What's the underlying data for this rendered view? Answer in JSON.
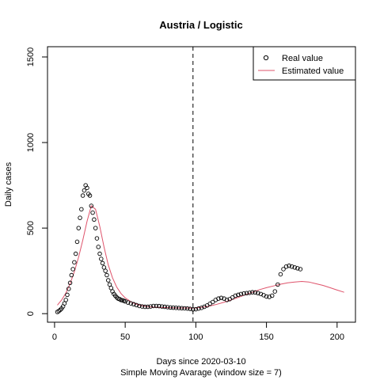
{
  "chart_data": {
    "type": "scatter",
    "title": "Austria / Logistic",
    "xlabel": "Days since 2020-03-10",
    "xlabel2": "Simple Moving Avarage (window size = 7)",
    "ylabel": "Daily cases",
    "xlim": [
      -5,
      213
    ],
    "ylim": [
      -50,
      1560
    ],
    "xticks": [
      0,
      50,
      100,
      150,
      200
    ],
    "yticks": [
      0,
      500,
      1000,
      1500
    ],
    "xtick_labels": [
      "0",
      "50",
      "100",
      "150",
      "200"
    ],
    "ytick_labels": [
      "0",
      "500",
      "1000",
      "1500"
    ],
    "vline_x": 98,
    "grid": false,
    "legend_position": "top-right",
    "series": [
      {
        "name": "Real value",
        "kind": "points",
        "color": "#000000",
        "x": [
          2,
          3,
          4,
          5,
          6,
          7,
          8,
          9,
          10,
          11,
          12,
          13,
          14,
          15,
          16,
          17,
          18,
          19,
          20,
          21,
          22,
          23,
          24,
          25,
          26,
          27,
          28,
          29,
          30,
          31,
          32,
          33,
          34,
          35,
          36,
          37,
          38,
          39,
          40,
          41,
          42,
          43,
          44,
          45,
          46,
          47,
          48,
          49,
          50,
          52,
          54,
          56,
          58,
          60,
          62,
          64,
          66,
          68,
          70,
          72,
          74,
          76,
          78,
          80,
          82,
          84,
          86,
          88,
          90,
          92,
          94,
          96,
          98,
          100,
          102,
          104,
          106,
          108,
          110,
          112,
          114,
          116,
          118,
          120,
          122,
          124,
          126,
          128,
          130,
          132,
          134,
          136,
          138,
          140,
          142,
          144,
          146,
          148,
          150,
          152,
          154,
          156,
          158,
          160,
          162,
          164,
          166,
          168,
          170,
          172,
          174
        ],
        "y": [
          10,
          15,
          22,
          30,
          42,
          60,
          80,
          110,
          145,
          180,
          225,
          260,
          300,
          350,
          420,
          500,
          560,
          610,
          690,
          720,
          750,
          735,
          700,
          690,
          630,
          590,
          550,
          500,
          440,
          390,
          350,
          320,
          295,
          270,
          250,
          225,
          195,
          170,
          150,
          130,
          115,
          105,
          95,
          88,
          85,
          80,
          78,
          75,
          72,
          65,
          60,
          55,
          50,
          45,
          42,
          40,
          40,
          42,
          45,
          45,
          44,
          42,
          40,
          38,
          36,
          35,
          34,
          33,
          32,
          31,
          30,
          28,
          25,
          26,
          30,
          34,
          40,
          48,
          58,
          68,
          80,
          88,
          92,
          88,
          80,
          85,
          95,
          105,
          110,
          115,
          118,
          120,
          122,
          125,
          124,
          120,
          115,
          108,
          100,
          98,
          105,
          130,
          170,
          230,
          260,
          275,
          280,
          275,
          270,
          265,
          260
        ]
      },
      {
        "name": "Estimated value",
        "kind": "line",
        "color": "#DF536B",
        "x": [
          2,
          5,
          8,
          11,
          14,
          17,
          20,
          23,
          26,
          29,
          32,
          35,
          38,
          41,
          44,
          47,
          50,
          55,
          60,
          65,
          70,
          75,
          80,
          85,
          90,
          95,
          100,
          105,
          110,
          115,
          120,
          125,
          130,
          135,
          140,
          145,
          150,
          155,
          160,
          165,
          170,
          175,
          180,
          185,
          190,
          195,
          200,
          205
        ],
        "y": [
          50,
          80,
          120,
          175,
          245,
          330,
          430,
          540,
          630,
          610,
          510,
          390,
          285,
          210,
          155,
          118,
          92,
          65,
          50,
          42,
          38,
          36,
          35,
          34,
          33,
          33,
          34,
          38,
          45,
          55,
          67,
          80,
          95,
          110,
          125,
          140,
          152,
          162,
          172,
          180,
          185,
          188,
          185,
          175,
          165,
          152,
          138,
          125
        ]
      }
    ]
  }
}
